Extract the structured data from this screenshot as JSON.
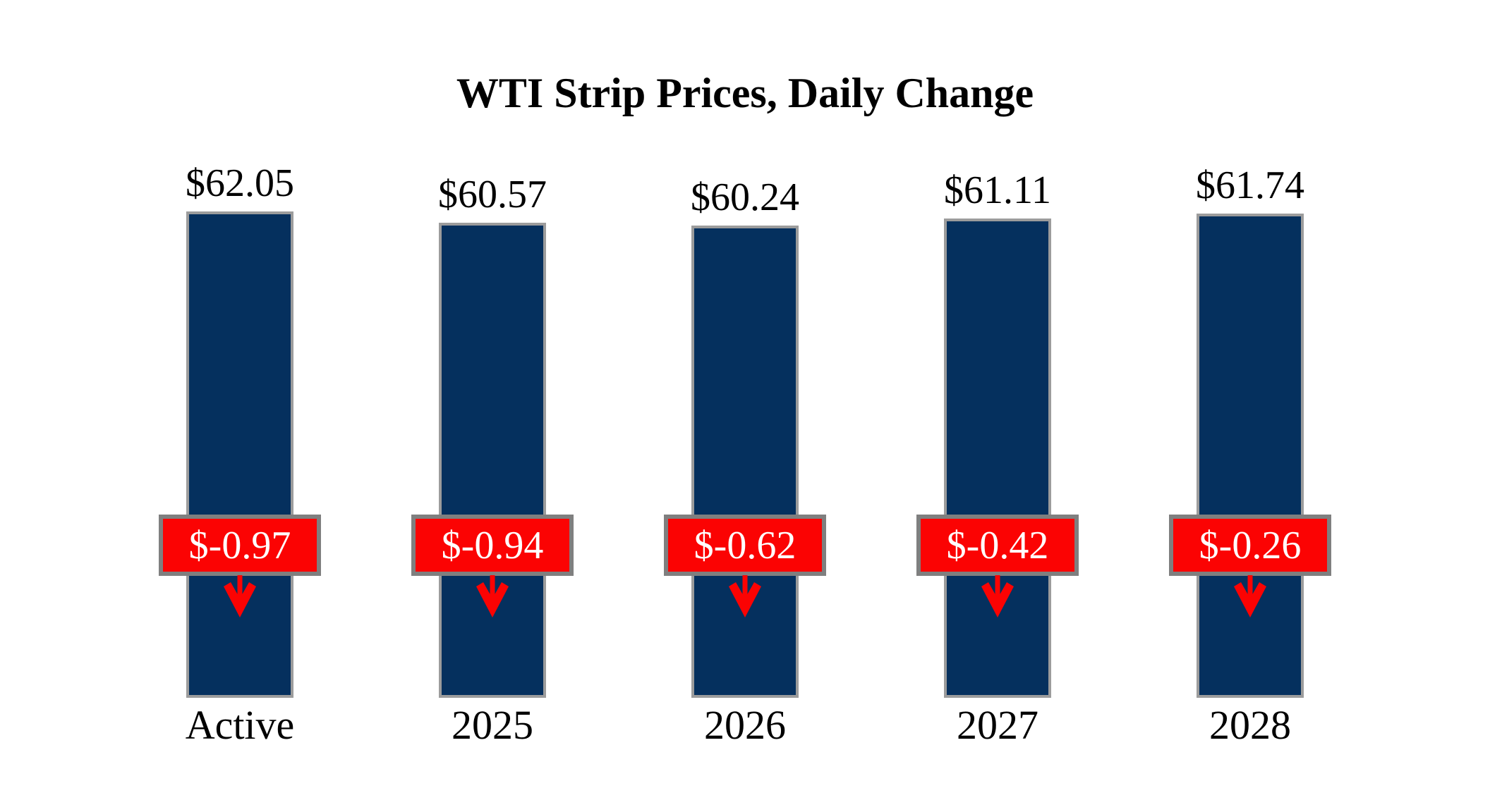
{
  "title": "WTI Strip Prices, Daily Change",
  "colors": {
    "bar": "#05305E",
    "bar_border": "#9C9C9C",
    "change_bg": "#FB0303",
    "change_border": "#7F7F7F",
    "change_text": "#FFFFFF",
    "text": "#000000",
    "background": "#FFFFFF"
  },
  "chart_data": {
    "type": "bar",
    "title": "WTI Strip Prices, Daily Change",
    "categories": [
      "Active",
      "2025",
      "2026",
      "2027",
      "2028"
    ],
    "series": [
      {
        "name": "Strip Price ($)",
        "values": [
          62.05,
          60.57,
          60.24,
          61.11,
          61.74
        ]
      },
      {
        "name": "Daily Change ($)",
        "values": [
          -0.97,
          -0.94,
          -0.62,
          -0.42,
          -0.26
        ]
      }
    ],
    "ylim": [
      0,
      62.05
    ],
    "grid": false,
    "legend": "none",
    "xlabel": "",
    "ylabel": "",
    "points": [
      {
        "category": "Active",
        "price": 62.05,
        "price_label": "$62.05",
        "change": -0.97,
        "change_label": "$-0.97"
      },
      {
        "category": "2025",
        "price": 60.57,
        "price_label": "$60.57",
        "change": -0.94,
        "change_label": "$-0.94"
      },
      {
        "category": "2026",
        "price": 60.24,
        "price_label": "$60.24",
        "change": -0.62,
        "change_label": "$-0.62"
      },
      {
        "category": "2027",
        "price": 61.11,
        "price_label": "$61.11",
        "change": -0.42,
        "change_label": "$-0.42"
      },
      {
        "category": "2028",
        "price": 61.74,
        "price_label": "$61.74",
        "change": -0.26,
        "change_label": "$-0.26"
      }
    ]
  }
}
